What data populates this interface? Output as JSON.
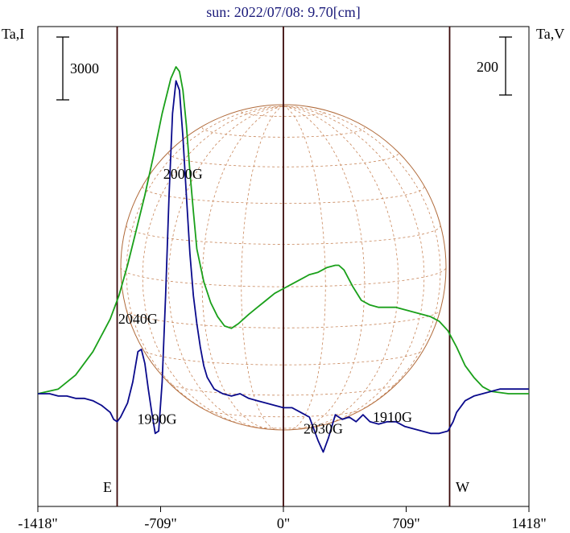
{
  "chart_data": {
    "type": "line",
    "title": "sun: 2022/07/08: 9.70[cm]",
    "left_axis_label": "Ta,I",
    "right_axis_label": "Ta,V",
    "left_scale_bar": "3000",
    "right_scale_bar": "200",
    "x_ticks": [
      "-1418\"",
      "-709\"",
      "0\"",
      "709\"",
      "1418\""
    ],
    "x_tick_values": [
      -1418,
      -709,
      0,
      709,
      1418
    ],
    "xlim": [
      -1418,
      1418
    ],
    "limb_lines": [
      -960,
      0,
      960
    ],
    "limb_labels": [
      "E",
      "W"
    ],
    "annotations": [
      {
        "text": "2000G",
        "x": -580,
        "y_level": 0.92
      },
      {
        "text": "2040G",
        "x": -840,
        "y_level": 0.3
      },
      {
        "text": "1990G",
        "x": -730,
        "y_level": -0.13
      },
      {
        "text": "2030G",
        "x": 230,
        "y_level": -0.17
      },
      {
        "text": "1910G",
        "x": 630,
        "y_level": -0.12
      }
    ],
    "series": [
      {
        "color": "#1aa01a",
        "x": [
          -1418,
          -1300,
          -1200,
          -1100,
          -1000,
          -950,
          -900,
          -850,
          -800,
          -750,
          -700,
          -650,
          -620,
          -600,
          -580,
          -560,
          -540,
          -520,
          -500,
          -460,
          -420,
          -380,
          -340,
          -300,
          -260,
          -200,
          -150,
          -100,
          -50,
          0,
          50,
          100,
          150,
          200,
          250,
          300,
          320,
          350,
          400,
          450,
          500,
          550,
          600,
          650,
          700,
          750,
          800,
          850,
          900,
          950,
          1000,
          1050,
          1100,
          1150,
          1200,
          1300,
          1418
        ],
        "y": [
          0.0,
          0.02,
          0.08,
          0.18,
          0.32,
          0.42,
          0.55,
          0.7,
          0.85,
          1.02,
          1.2,
          1.35,
          1.4,
          1.38,
          1.3,
          1.15,
          0.95,
          0.78,
          0.62,
          0.48,
          0.39,
          0.33,
          0.29,
          0.28,
          0.3,
          0.34,
          0.37,
          0.4,
          0.43,
          0.45,
          0.47,
          0.49,
          0.51,
          0.52,
          0.54,
          0.55,
          0.55,
          0.53,
          0.46,
          0.4,
          0.38,
          0.37,
          0.37,
          0.37,
          0.36,
          0.35,
          0.34,
          0.33,
          0.31,
          0.27,
          0.2,
          0.12,
          0.07,
          0.03,
          0.01,
          0.0,
          0.0
        ]
      },
      {
        "color": "#0a0a8c",
        "x": [
          -1418,
          -1350,
          -1300,
          -1250,
          -1200,
          -1150,
          -1100,
          -1050,
          -1000,
          -980,
          -960,
          -940,
          -900,
          -870,
          -840,
          -820,
          -800,
          -780,
          -760,
          -740,
          -720,
          -700,
          -680,
          -660,
          -640,
          -620,
          -600,
          -580,
          -560,
          -540,
          -520,
          -500,
          -480,
          -460,
          -440,
          -400,
          -350,
          -300,
          -250,
          -200,
          -150,
          -100,
          -50,
          0,
          50,
          100,
          150,
          200,
          230,
          260,
          300,
          340,
          380,
          420,
          460,
          500,
          550,
          600,
          650,
          700,
          750,
          800,
          850,
          900,
          950,
          980,
          1000,
          1050,
          1100,
          1150,
          1200,
          1250,
          1300,
          1350,
          1418
        ],
        "y": [
          0.0,
          0.0,
          -0.01,
          -0.01,
          -0.02,
          -0.02,
          -0.03,
          -0.05,
          -0.08,
          -0.11,
          -0.12,
          -0.1,
          -0.04,
          0.05,
          0.18,
          0.19,
          0.13,
          0.02,
          -0.08,
          -0.17,
          -0.16,
          0.05,
          0.42,
          0.85,
          1.2,
          1.34,
          1.3,
          1.1,
          0.85,
          0.6,
          0.42,
          0.3,
          0.2,
          0.12,
          0.07,
          0.02,
          0.0,
          -0.01,
          0.0,
          -0.02,
          -0.03,
          -0.04,
          -0.05,
          -0.06,
          -0.06,
          -0.08,
          -0.1,
          -0.2,
          -0.25,
          -0.19,
          -0.09,
          -0.11,
          -0.1,
          -0.12,
          -0.09,
          -0.12,
          -0.13,
          -0.12,
          -0.12,
          -0.14,
          -0.15,
          -0.16,
          -0.17,
          -0.17,
          -0.16,
          -0.12,
          -0.08,
          -0.03,
          -0.01,
          0.0,
          0.01,
          0.02,
          0.02,
          0.02,
          0.02
        ]
      }
    ]
  }
}
